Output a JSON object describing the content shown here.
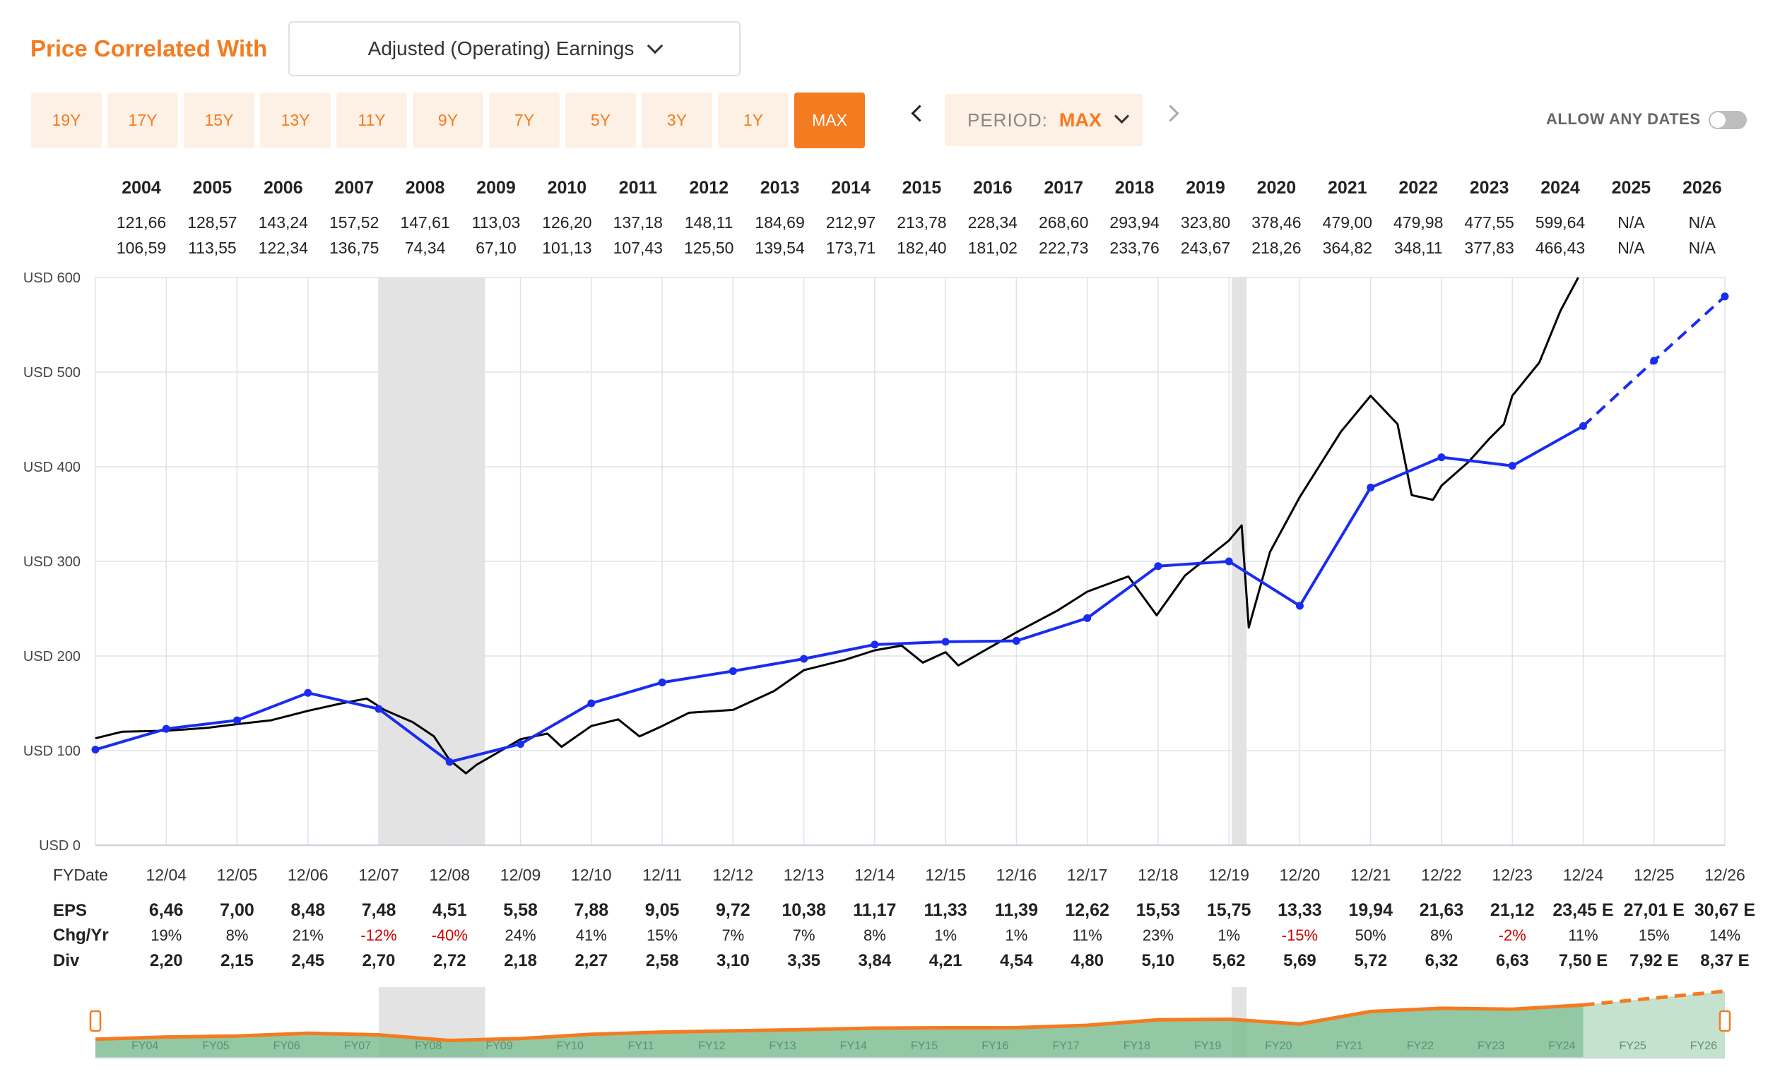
{
  "header": {
    "title": "Price Correlated With",
    "earnings_select": "Adjusted (Operating) Earnings"
  },
  "ranges": [
    "19Y",
    "17Y",
    "15Y",
    "13Y",
    "11Y",
    "9Y",
    "7Y",
    "5Y",
    "3Y",
    "1Y",
    "MAX"
  ],
  "active_range": "MAX",
  "period": {
    "label": "PERIOD:",
    "value": "MAX"
  },
  "allow_any_dates": {
    "label": "ALLOW ANY DATES",
    "on": false
  },
  "colors": {
    "accent": "#f47b20",
    "price_line": "#000000",
    "earnings_line": "#1a2cf0",
    "recession": "#e3e3e3",
    "area": "#7fbf94"
  },
  "chart_data": {
    "type": "line",
    "years": [
      "2004",
      "2005",
      "2006",
      "2007",
      "2008",
      "2009",
      "2010",
      "2011",
      "2012",
      "2013",
      "2014",
      "2015",
      "2016",
      "2017",
      "2018",
      "2019",
      "2020",
      "2021",
      "2022",
      "2023",
      "2024",
      "2025",
      "2026"
    ],
    "annual_high": [
      "121,66",
      "128,57",
      "143,24",
      "157,52",
      "147,61",
      "113,03",
      "126,20",
      "137,18",
      "148,11",
      "184,69",
      "212,97",
      "213,78",
      "228,34",
      "268,60",
      "293,94",
      "323,80",
      "378,46",
      "479,00",
      "479,98",
      "477,55",
      "599,64",
      "N/A",
      "N/A"
    ],
    "annual_low": [
      "106,59",
      "113,55",
      "122,34",
      "136,75",
      "74,34",
      "67,10",
      "101,13",
      "107,43",
      "125,50",
      "139,54",
      "173,71",
      "182,40",
      "181,02",
      "222,73",
      "233,76",
      "243,67",
      "218,26",
      "364,82",
      "348,11",
      "377,83",
      "466,43",
      "N/A",
      "N/A"
    ],
    "y_ticks": [
      "USD 0",
      "USD 100",
      "USD 200",
      "USD 300",
      "USD 400",
      "USD 500",
      "USD 600"
    ],
    "ylim": [
      0,
      600
    ],
    "x_label": "FYDate",
    "x_ticks": [
      "12/04",
      "12/05",
      "12/06",
      "12/07",
      "12/08",
      "12/09",
      "12/10",
      "12/11",
      "12/12",
      "12/13",
      "12/14",
      "12/15",
      "12/16",
      "12/17",
      "12/18",
      "12/19",
      "12/20",
      "12/21",
      "12/22",
      "12/23",
      "12/24",
      "12/25",
      "12/26"
    ],
    "recessions": [
      [
        2007.92,
        2009.42
      ],
      [
        2019.96,
        2020.17
      ]
    ],
    "earnings_series": {
      "x": [
        2003.92,
        2004.92,
        2005.92,
        2006.92,
        2007.92,
        2008.92,
        2009.92,
        2010.92,
        2011.92,
        2012.92,
        2013.92,
        2014.92,
        2015.92,
        2016.92,
        2017.92,
        2018.92,
        2019.92,
        2020.92,
        2021.92,
        2022.92,
        2023.92,
        2024.92,
        2025.92,
        2026.92
      ],
      "y": [
        101,
        123,
        132,
        161,
        144,
        88,
        107,
        150,
        172,
        184,
        197,
        212,
        215,
        216,
        240,
        295,
        300,
        253,
        378,
        410,
        401,
        443,
        512,
        580
      ],
      "projected_from_index": 21
    },
    "price_series": {
      "x": [
        2003.92,
        2004.3,
        2004.92,
        2005.5,
        2005.92,
        2006.4,
        2006.92,
        2007.4,
        2007.75,
        2008.0,
        2008.4,
        2008.7,
        2008.92,
        2009.15,
        2009.3,
        2009.6,
        2009.92,
        2010.3,
        2010.5,
        2010.92,
        2011.3,
        2011.6,
        2011.92,
        2012.3,
        2012.92,
        2013.5,
        2013.92,
        2014.5,
        2014.92,
        2015.3,
        2015.6,
        2015.92,
        2016.1,
        2016.92,
        2017.5,
        2017.92,
        2018.5,
        2018.9,
        2019.3,
        2019.92,
        2020.1,
        2020.2,
        2020.5,
        2020.92,
        2021.5,
        2021.92,
        2022.3,
        2022.5,
        2022.8,
        2022.92,
        2023.3,
        2023.6,
        2023.8,
        2023.92,
        2024.3,
        2024.6,
        2024.85
      ],
      "y": [
        113,
        120,
        121,
        124,
        128,
        132,
        142,
        150,
        155,
        143,
        130,
        115,
        90,
        76,
        85,
        98,
        112,
        118,
        104,
        126,
        133,
        115,
        126,
        140,
        143,
        163,
        185,
        196,
        206,
        211,
        193,
        204,
        190,
        225,
        248,
        268,
        284,
        243,
        285,
        322,
        338,
        230,
        310,
        368,
        437,
        475,
        445,
        370,
        365,
        380,
        405,
        430,
        445,
        475,
        510,
        565,
        600
      ]
    },
    "eps": [
      "6,46",
      "7,00",
      "8,48",
      "7,48",
      "4,51",
      "5,58",
      "7,88",
      "9,05",
      "9,72",
      "10,38",
      "11,17",
      "11,33",
      "11,39",
      "12,62",
      "15,53",
      "15,75",
      "13,33",
      "19,94",
      "21,63",
      "21,12",
      "23,45 E",
      "27,01 E",
      "30,67 E"
    ],
    "chg_yr": [
      "19%",
      "8%",
      "21%",
      "-12%",
      "-40%",
      "24%",
      "41%",
      "15%",
      "7%",
      "7%",
      "8%",
      "1%",
      "1%",
      "11%",
      "23%",
      "1%",
      "-15%",
      "50%",
      "8%",
      "-2%",
      "11%",
      "15%",
      "14%"
    ],
    "div": [
      "2,20",
      "2,15",
      "2,45",
      "2,70",
      "2,72",
      "2,18",
      "2,27",
      "2,58",
      "3,10",
      "3,35",
      "3,84",
      "4,21",
      "4,54",
      "4,80",
      "5,10",
      "5,62",
      "5,69",
      "5,72",
      "6,32",
      "6,63",
      "7,50 E",
      "7,92 E",
      "8,37 E"
    ],
    "row_labels": {
      "eps": "EPS",
      "chg": "Chg/Yr",
      "div": "Div"
    },
    "navigator_labels": [
      "FY04",
      "FY05",
      "FY06",
      "FY07",
      "FY08",
      "FY09",
      "FY10",
      "FY11",
      "FY12",
      "FY13",
      "FY14",
      "FY15",
      "FY16",
      "FY17",
      "FY18",
      "FY19",
      "FY20",
      "FY21",
      "FY22",
      "FY23",
      "FY24",
      "FY25",
      "FY26"
    ]
  }
}
